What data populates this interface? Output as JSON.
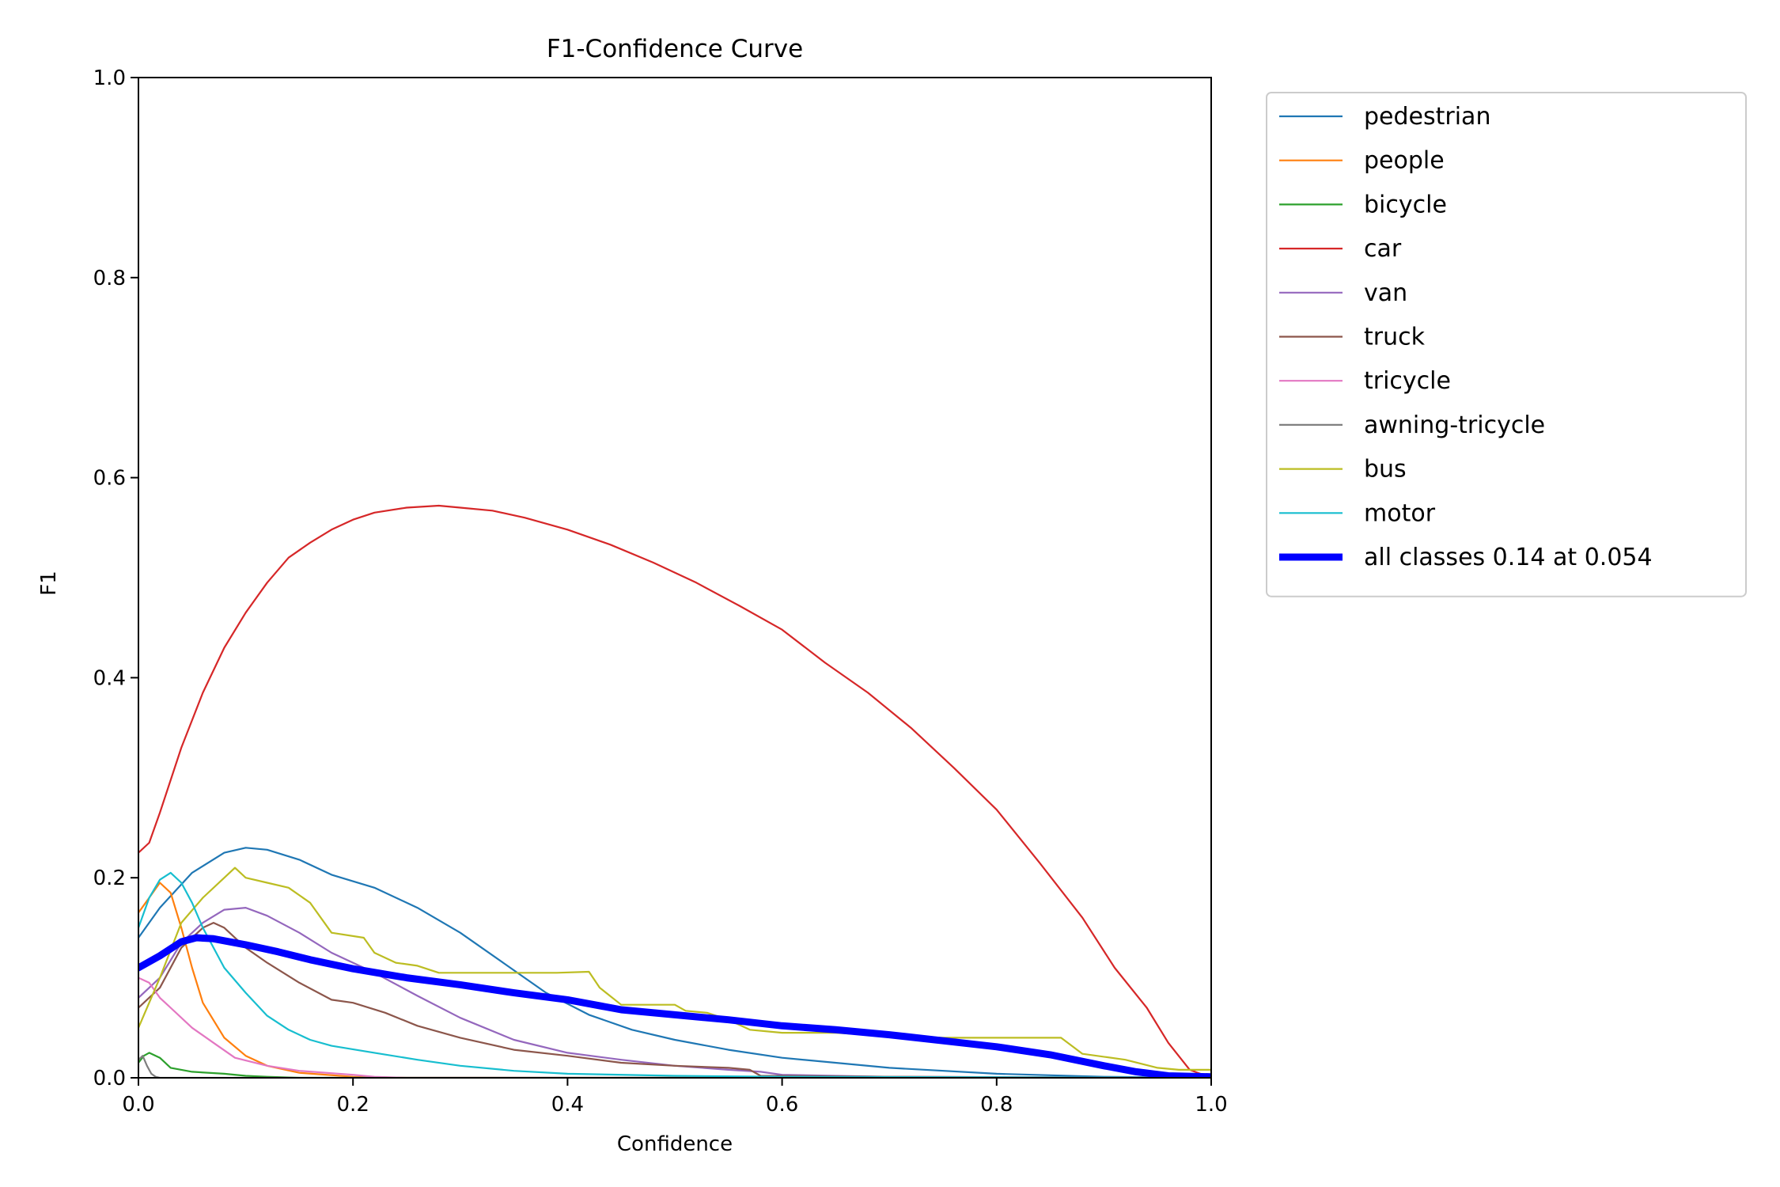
{
  "chart_data": {
    "type": "line",
    "title": "F1-Confidence Curve",
    "xlabel": "Confidence",
    "ylabel": "F1",
    "xlim": [
      0,
      1
    ],
    "ylim": [
      0,
      1
    ],
    "x_ticks": [
      "0.0",
      "0.2",
      "0.4",
      "0.6",
      "0.8",
      "1.0"
    ],
    "y_ticks": [
      "0.0",
      "0.2",
      "0.4",
      "0.6",
      "0.8",
      "1.0"
    ],
    "grid": false,
    "legend_position": "outside-top-right",
    "series": [
      {
        "name": "pedestrian",
        "color": "#1f77b4",
        "points": [
          [
            0,
            0.14
          ],
          [
            0.02,
            0.17
          ],
          [
            0.05,
            0.205
          ],
          [
            0.08,
            0.225
          ],
          [
            0.1,
            0.23
          ],
          [
            0.12,
            0.228
          ],
          [
            0.15,
            0.218
          ],
          [
            0.18,
            0.203
          ],
          [
            0.22,
            0.19
          ],
          [
            0.26,
            0.17
          ],
          [
            0.3,
            0.145
          ],
          [
            0.34,
            0.115
          ],
          [
            0.38,
            0.085
          ],
          [
            0.42,
            0.063
          ],
          [
            0.46,
            0.048
          ],
          [
            0.5,
            0.038
          ],
          [
            0.55,
            0.028
          ],
          [
            0.6,
            0.02
          ],
          [
            0.7,
            0.01
          ],
          [
            0.8,
            0.004
          ],
          [
            0.9,
            0.001
          ],
          [
            1.0,
            0
          ]
        ]
      },
      {
        "name": "people",
        "color": "#ff7f0e",
        "points": [
          [
            0,
            0.165
          ],
          [
            0.01,
            0.18
          ],
          [
            0.02,
            0.195
          ],
          [
            0.03,
            0.185
          ],
          [
            0.04,
            0.15
          ],
          [
            0.05,
            0.11
          ],
          [
            0.06,
            0.075
          ],
          [
            0.08,
            0.04
          ],
          [
            0.1,
            0.022
          ],
          [
            0.12,
            0.012
          ],
          [
            0.15,
            0.005
          ],
          [
            0.2,
            0.001
          ],
          [
            0.25,
            0
          ],
          [
            1.0,
            0
          ]
        ]
      },
      {
        "name": "bicycle",
        "color": "#2ca02c",
        "points": [
          [
            0,
            0.015
          ],
          [
            0.005,
            0.022
          ],
          [
            0.01,
            0.025
          ],
          [
            0.02,
            0.02
          ],
          [
            0.03,
            0.01
          ],
          [
            0.05,
            0.006
          ],
          [
            0.08,
            0.004
          ],
          [
            0.1,
            0.002
          ],
          [
            0.12,
            0.001
          ],
          [
            0.15,
            0
          ],
          [
            1.0,
            0
          ]
        ]
      },
      {
        "name": "car",
        "color": "#d62728",
        "points": [
          [
            0,
            0.225
          ],
          [
            0.01,
            0.235
          ],
          [
            0.02,
            0.265
          ],
          [
            0.04,
            0.33
          ],
          [
            0.06,
            0.385
          ],
          [
            0.08,
            0.43
          ],
          [
            0.1,
            0.465
          ],
          [
            0.12,
            0.495
          ],
          [
            0.14,
            0.52
          ],
          [
            0.16,
            0.535
          ],
          [
            0.18,
            0.548
          ],
          [
            0.2,
            0.558
          ],
          [
            0.22,
            0.565
          ],
          [
            0.25,
            0.57
          ],
          [
            0.28,
            0.572
          ],
          [
            0.3,
            0.57
          ],
          [
            0.33,
            0.567
          ],
          [
            0.36,
            0.56
          ],
          [
            0.4,
            0.548
          ],
          [
            0.44,
            0.533
          ],
          [
            0.48,
            0.515
          ],
          [
            0.52,
            0.495
          ],
          [
            0.56,
            0.472
          ],
          [
            0.6,
            0.448
          ],
          [
            0.64,
            0.415
          ],
          [
            0.68,
            0.385
          ],
          [
            0.72,
            0.35
          ],
          [
            0.76,
            0.31
          ],
          [
            0.8,
            0.268
          ],
          [
            0.84,
            0.215
          ],
          [
            0.88,
            0.16
          ],
          [
            0.91,
            0.11
          ],
          [
            0.94,
            0.07
          ],
          [
            0.96,
            0.035
          ],
          [
            0.98,
            0.008
          ],
          [
            1.0,
            0
          ]
        ]
      },
      {
        "name": "van",
        "color": "#9467bd",
        "points": [
          [
            0,
            0.08
          ],
          [
            0.02,
            0.1
          ],
          [
            0.04,
            0.135
          ],
          [
            0.06,
            0.155
          ],
          [
            0.08,
            0.168
          ],
          [
            0.1,
            0.17
          ],
          [
            0.12,
            0.162
          ],
          [
            0.15,
            0.145
          ],
          [
            0.18,
            0.125
          ],
          [
            0.22,
            0.105
          ],
          [
            0.26,
            0.082
          ],
          [
            0.3,
            0.06
          ],
          [
            0.35,
            0.038
          ],
          [
            0.4,
            0.025
          ],
          [
            0.45,
            0.018
          ],
          [
            0.5,
            0.012
          ],
          [
            0.55,
            0.008
          ],
          [
            0.58,
            0.006
          ],
          [
            0.6,
            0.003
          ],
          [
            0.7,
            0.001
          ],
          [
            1.0,
            0
          ]
        ]
      },
      {
        "name": "truck",
        "color": "#8c564b",
        "points": [
          [
            0,
            0.07
          ],
          [
            0.02,
            0.09
          ],
          [
            0.04,
            0.13
          ],
          [
            0.06,
            0.15
          ],
          [
            0.07,
            0.155
          ],
          [
            0.08,
            0.15
          ],
          [
            0.1,
            0.13
          ],
          [
            0.12,
            0.115
          ],
          [
            0.15,
            0.095
          ],
          [
            0.18,
            0.078
          ],
          [
            0.2,
            0.075
          ],
          [
            0.23,
            0.065
          ],
          [
            0.26,
            0.052
          ],
          [
            0.3,
            0.04
          ],
          [
            0.35,
            0.028
          ],
          [
            0.4,
            0.022
          ],
          [
            0.45,
            0.015
          ],
          [
            0.5,
            0.012
          ],
          [
            0.55,
            0.01
          ],
          [
            0.57,
            0.008
          ],
          [
            0.58,
            0.002
          ],
          [
            0.7,
            0.001
          ],
          [
            1.0,
            0
          ]
        ]
      },
      {
        "name": "tricycle",
        "color": "#e377c2",
        "points": [
          [
            0,
            0.1
          ],
          [
            0.01,
            0.095
          ],
          [
            0.02,
            0.08
          ],
          [
            0.03,
            0.07
          ],
          [
            0.05,
            0.05
          ],
          [
            0.07,
            0.035
          ],
          [
            0.09,
            0.02
          ],
          [
            0.12,
            0.012
          ],
          [
            0.15,
            0.007
          ],
          [
            0.2,
            0.003
          ],
          [
            0.22,
            0.001
          ],
          [
            0.25,
            0
          ],
          [
            1.0,
            0
          ]
        ]
      },
      {
        "name": "awning-tricycle",
        "color": "#7f7f7f",
        "points": [
          [
            0,
            0.018
          ],
          [
            0.004,
            0.022
          ],
          [
            0.008,
            0.012
          ],
          [
            0.012,
            0.004
          ],
          [
            0.016,
            0.001
          ],
          [
            0.02,
            0
          ],
          [
            1.0,
            0
          ]
        ]
      },
      {
        "name": "bus",
        "color": "#bcbd22",
        "points": [
          [
            0,
            0.05
          ],
          [
            0.02,
            0.1
          ],
          [
            0.04,
            0.155
          ],
          [
            0.06,
            0.18
          ],
          [
            0.08,
            0.2
          ],
          [
            0.09,
            0.21
          ],
          [
            0.1,
            0.2
          ],
          [
            0.12,
            0.195
          ],
          [
            0.14,
            0.19
          ],
          [
            0.16,
            0.175
          ],
          [
            0.18,
            0.145
          ],
          [
            0.21,
            0.14
          ],
          [
            0.22,
            0.125
          ],
          [
            0.24,
            0.115
          ],
          [
            0.26,
            0.112
          ],
          [
            0.28,
            0.105
          ],
          [
            0.3,
            0.105
          ],
          [
            0.32,
            0.105
          ],
          [
            0.36,
            0.105
          ],
          [
            0.39,
            0.105
          ],
          [
            0.42,
            0.106
          ],
          [
            0.43,
            0.09
          ],
          [
            0.45,
            0.073
          ],
          [
            0.5,
            0.073
          ],
          [
            0.51,
            0.067
          ],
          [
            0.53,
            0.065
          ],
          [
            0.55,
            0.058
          ],
          [
            0.57,
            0.048
          ],
          [
            0.6,
            0.045
          ],
          [
            0.65,
            0.045
          ],
          [
            0.7,
            0.042
          ],
          [
            0.75,
            0.04
          ],
          [
            0.8,
            0.04
          ],
          [
            0.86,
            0.04
          ],
          [
            0.88,
            0.024
          ],
          [
            0.92,
            0.018
          ],
          [
            0.95,
            0.01
          ],
          [
            0.97,
            0.008
          ],
          [
            0.99,
            0.008
          ],
          [
            1.0,
            0.008
          ]
        ]
      },
      {
        "name": "motor",
        "color": "#17becf",
        "points": [
          [
            0,
            0.15
          ],
          [
            0.01,
            0.18
          ],
          [
            0.02,
            0.198
          ],
          [
            0.03,
            0.205
          ],
          [
            0.04,
            0.195
          ],
          [
            0.05,
            0.175
          ],
          [
            0.06,
            0.15
          ],
          [
            0.08,
            0.11
          ],
          [
            0.1,
            0.085
          ],
          [
            0.12,
            0.062
          ],
          [
            0.14,
            0.048
          ],
          [
            0.16,
            0.038
          ],
          [
            0.18,
            0.032
          ],
          [
            0.22,
            0.025
          ],
          [
            0.26,
            0.018
          ],
          [
            0.3,
            0.012
          ],
          [
            0.35,
            0.007
          ],
          [
            0.4,
            0.004
          ],
          [
            0.5,
            0.002
          ],
          [
            0.6,
            0.001
          ],
          [
            1.0,
            0
          ]
        ]
      },
      {
        "name": "all classes 0.14 at 0.054",
        "color": "#0000ff",
        "bold": true,
        "points": [
          [
            0,
            0.11
          ],
          [
            0.02,
            0.122
          ],
          [
            0.04,
            0.136
          ],
          [
            0.054,
            0.14
          ],
          [
            0.07,
            0.139
          ],
          [
            0.1,
            0.133
          ],
          [
            0.13,
            0.126
          ],
          [
            0.16,
            0.118
          ],
          [
            0.2,
            0.109
          ],
          [
            0.25,
            0.1
          ],
          [
            0.3,
            0.093
          ],
          [
            0.35,
            0.085
          ],
          [
            0.4,
            0.078
          ],
          [
            0.45,
            0.068
          ],
          [
            0.5,
            0.063
          ],
          [
            0.55,
            0.058
          ],
          [
            0.6,
            0.052
          ],
          [
            0.65,
            0.048
          ],
          [
            0.7,
            0.043
          ],
          [
            0.75,
            0.037
          ],
          [
            0.8,
            0.031
          ],
          [
            0.85,
            0.023
          ],
          [
            0.9,
            0.012
          ],
          [
            0.93,
            0.006
          ],
          [
            0.96,
            0.002
          ],
          [
            1.0,
            0.001
          ]
        ]
      }
    ]
  }
}
